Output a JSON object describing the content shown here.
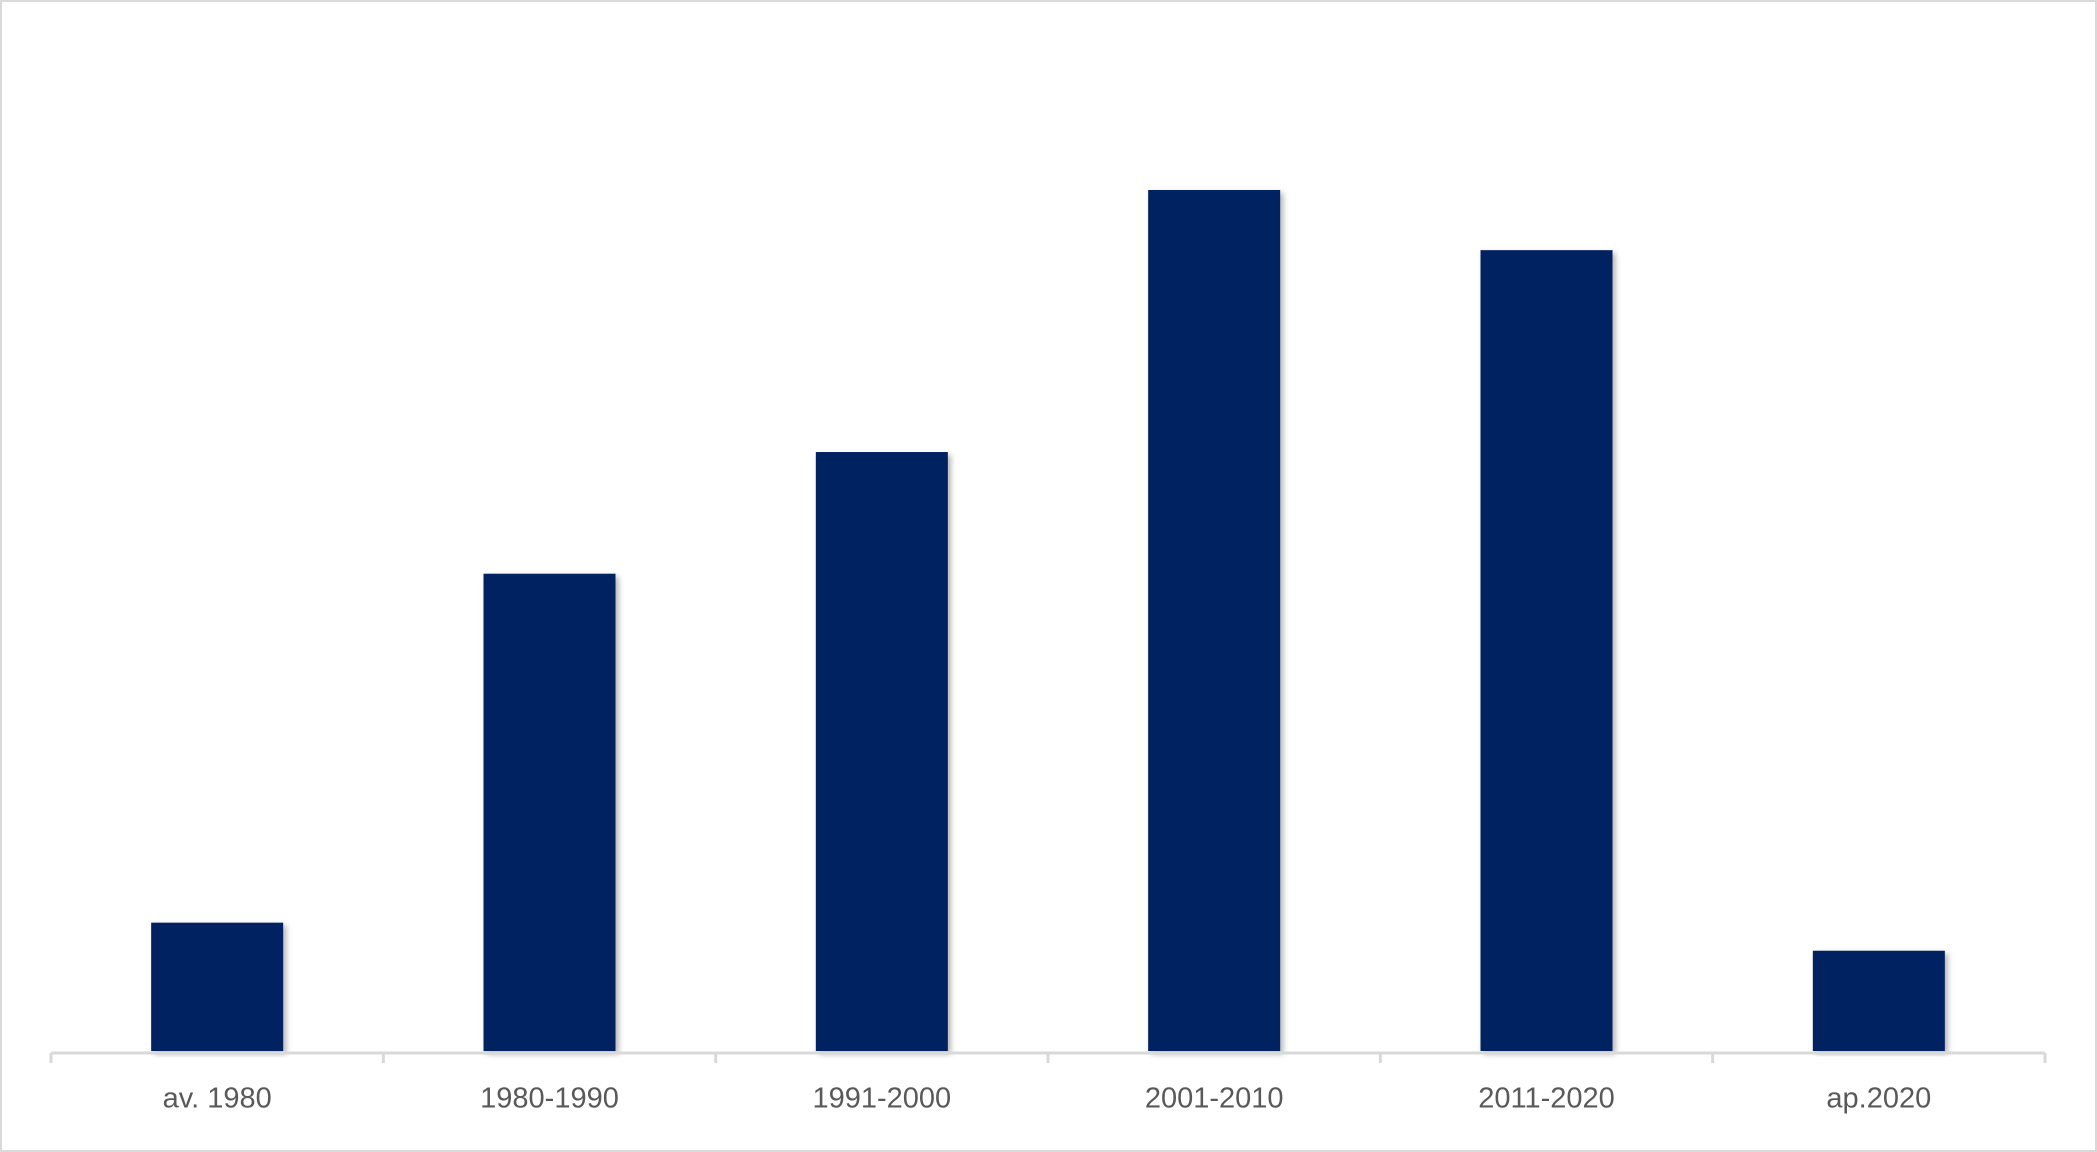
{
  "chart_data": {
    "type": "bar",
    "categories": [
      "av. 1980",
      "1980-1990",
      "1991-2000",
      "2001-2010",
      "2011-2020",
      "ap.2020"
    ],
    "values": [
      96,
      357,
      448,
      644,
      599,
      75
    ],
    "color": "#002060"
  }
}
